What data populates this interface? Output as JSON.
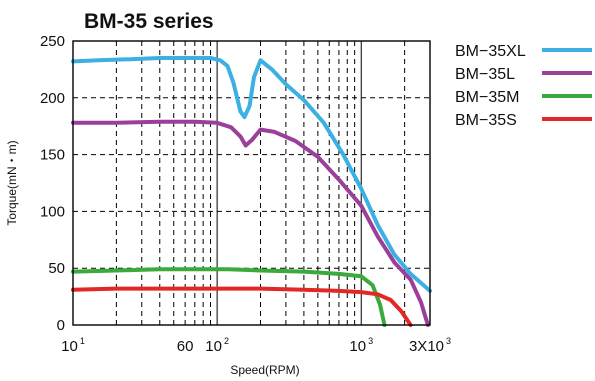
{
  "chart_data": {
    "type": "line",
    "title": "BM-35 series",
    "xlabel": "Speed(RPM)",
    "ylabel": "Torque(mN・m)",
    "x_scale": "log",
    "xlim": [
      10,
      3000
    ],
    "ylim": [
      0,
      250
    ],
    "grid": true,
    "legend_position": "right",
    "y_ticks": [
      "0",
      "50",
      "100",
      "150",
      "200",
      "250"
    ],
    "x_ticks": [
      {
        "value": 10,
        "base": "10",
        "sup": "1"
      },
      {
        "value": 60,
        "base": "60",
        "sup": ""
      },
      {
        "value": 100,
        "base": "10",
        "sup": "2"
      },
      {
        "value": 1000,
        "base": "10",
        "sup": "3"
      },
      {
        "value": 3000,
        "base": "3X10",
        "sup": "3"
      }
    ],
    "series": [
      {
        "name": "BM−35XL",
        "color": "#3ab0e3",
        "x": [
          10,
          15,
          25,
          40,
          60,
          90,
          105,
          118,
          130,
          145,
          155,
          168,
          180,
          200,
          240,
          300,
          400,
          550,
          750,
          1000,
          1300,
          1700,
          2200,
          3000
        ],
        "y": [
          232,
          233,
          234,
          235,
          235,
          235,
          233,
          228,
          213,
          188,
          183,
          193,
          218,
          233,
          225,
          212,
          198,
          178,
          150,
          120,
          88,
          62,
          45,
          30
        ]
      },
      {
        "name": "BM−35L",
        "color": "#9b3f9b",
        "x": [
          10,
          20,
          40,
          70,
          100,
          125,
          145,
          158,
          175,
          200,
          250,
          350,
          500,
          700,
          1000,
          1300,
          1700,
          2200,
          2600,
          2900
        ],
        "y": [
          178,
          178,
          179,
          179,
          178,
          174,
          166,
          158,
          163,
          172,
          170,
          162,
          148,
          128,
          105,
          78,
          55,
          40,
          20,
          0
        ]
      },
      {
        "name": "BM−35M",
        "color": "#3aaa3a",
        "x": [
          10,
          20,
          40,
          80,
          120,
          200,
          400,
          700,
          1000,
          1200,
          1350,
          1450
        ],
        "y": [
          47,
          48,
          49,
          49,
          49,
          48,
          47,
          45,
          43,
          35,
          18,
          0
        ]
      },
      {
        "name": "BM−35S",
        "color": "#e32626",
        "x": [
          10,
          20,
          40,
          100,
          200,
          400,
          700,
          1000,
          1300,
          1600,
          1900,
          2200
        ],
        "y": [
          31,
          32,
          32,
          32,
          32,
          31,
          30,
          29,
          27,
          22,
          12,
          0
        ]
      }
    ]
  }
}
